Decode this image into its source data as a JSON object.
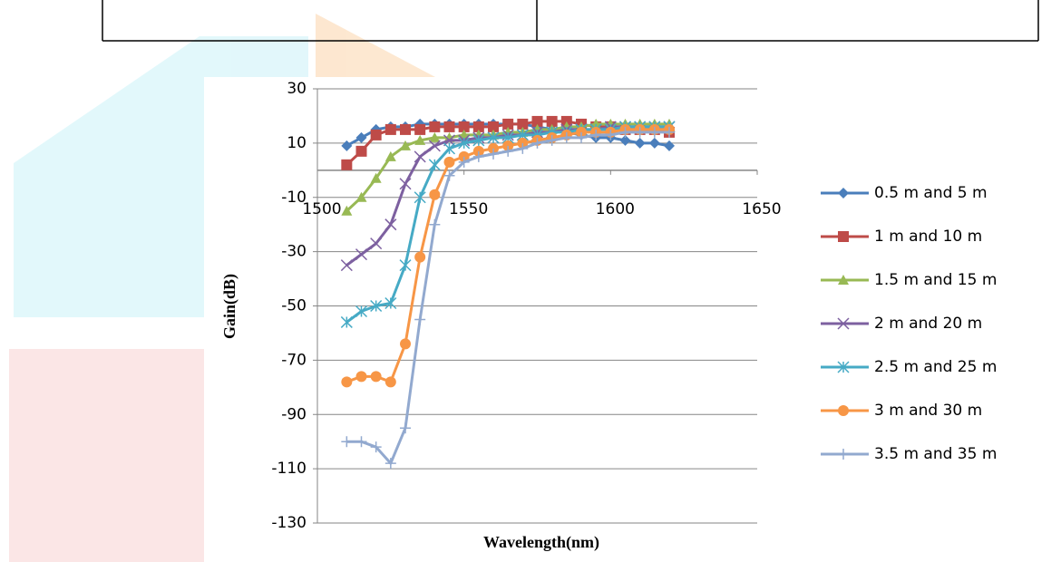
{
  "chart_data": {
    "type": "line",
    "xlabel": "Wavelength(nm)",
    "ylabel": "Gain(dB)",
    "x": [
      1510,
      1515,
      1520,
      1525,
      1530,
      1535,
      1540,
      1545,
      1550,
      1555,
      1560,
      1565,
      1570,
      1575,
      1580,
      1585,
      1590,
      1595,
      1600,
      1605,
      1610,
      1615,
      1620
    ],
    "xlim": [
      1500,
      1650
    ],
    "xticks": [
      1500,
      1550,
      1600,
      1650
    ],
    "ylim": [
      -130,
      30
    ],
    "yticks": [
      -130,
      -110,
      -90,
      -70,
      -50,
      -30,
      -10,
      10,
      30
    ],
    "grid": true,
    "legend": "right",
    "series": [
      {
        "name": "0.5 m and 5 m",
        "color": "#4a7ebb",
        "marker": "diamond",
        "values": [
          9,
          12,
          15,
          16,
          16,
          17,
          17,
          17,
          17,
          17,
          17,
          17,
          17,
          16,
          15,
          14,
          13,
          12,
          12,
          11,
          10,
          10,
          9
        ]
      },
      {
        "name": "1 m and 10 m",
        "color": "#be4b48",
        "marker": "square",
        "values": [
          2,
          7,
          13,
          15,
          15,
          15,
          16,
          16,
          16,
          16,
          16,
          17,
          17,
          18,
          18,
          18,
          17,
          16,
          16,
          15,
          15,
          15,
          14
        ]
      },
      {
        "name": "1.5 m and 15 m",
        "color": "#98b954",
        "marker": "triangle",
        "values": [
          -15,
          -10,
          -3,
          5,
          9,
          11,
          12,
          12,
          13,
          13,
          13,
          14,
          14,
          15,
          15,
          16,
          16,
          17,
          17,
          17,
          17,
          17,
          17
        ]
      },
      {
        "name": "2 m and 20 m",
        "color": "#7d60a0",
        "marker": "x",
        "values": [
          -35,
          -31,
          -27,
          -20,
          -5,
          5,
          9,
          11,
          11,
          12,
          12,
          13,
          13,
          14,
          14,
          15,
          15,
          15,
          16,
          16,
          16,
          16,
          16
        ]
      },
      {
        "name": "2.5 m and 25 m",
        "color": "#46aac5",
        "marker": "star",
        "values": [
          -56,
          -52,
          -50,
          -49,
          -35,
          -10,
          2,
          8,
          10,
          11,
          12,
          12,
          13,
          13,
          14,
          14,
          15,
          15,
          15,
          16,
          16,
          16,
          16
        ]
      },
      {
        "name": "3 m and 30 m",
        "color": "#f79646",
        "marker": "circle",
        "values": [
          -78,
          -76,
          -76,
          -78,
          -64,
          -32,
          -9,
          3,
          5,
          7,
          8,
          9,
          10,
          11,
          12,
          13,
          14,
          14,
          14,
          15,
          15,
          15,
          15
        ]
      },
      {
        "name": "3.5 m and 35 m",
        "color": "#92a9cf",
        "marker": "plus",
        "values": [
          -100,
          -100,
          -102,
          -108,
          -95,
          -55,
          -20,
          -2,
          3,
          5,
          6,
          7,
          8,
          10,
          11,
          12,
          12,
          13,
          13,
          14,
          14,
          14,
          14
        ]
      }
    ]
  }
}
